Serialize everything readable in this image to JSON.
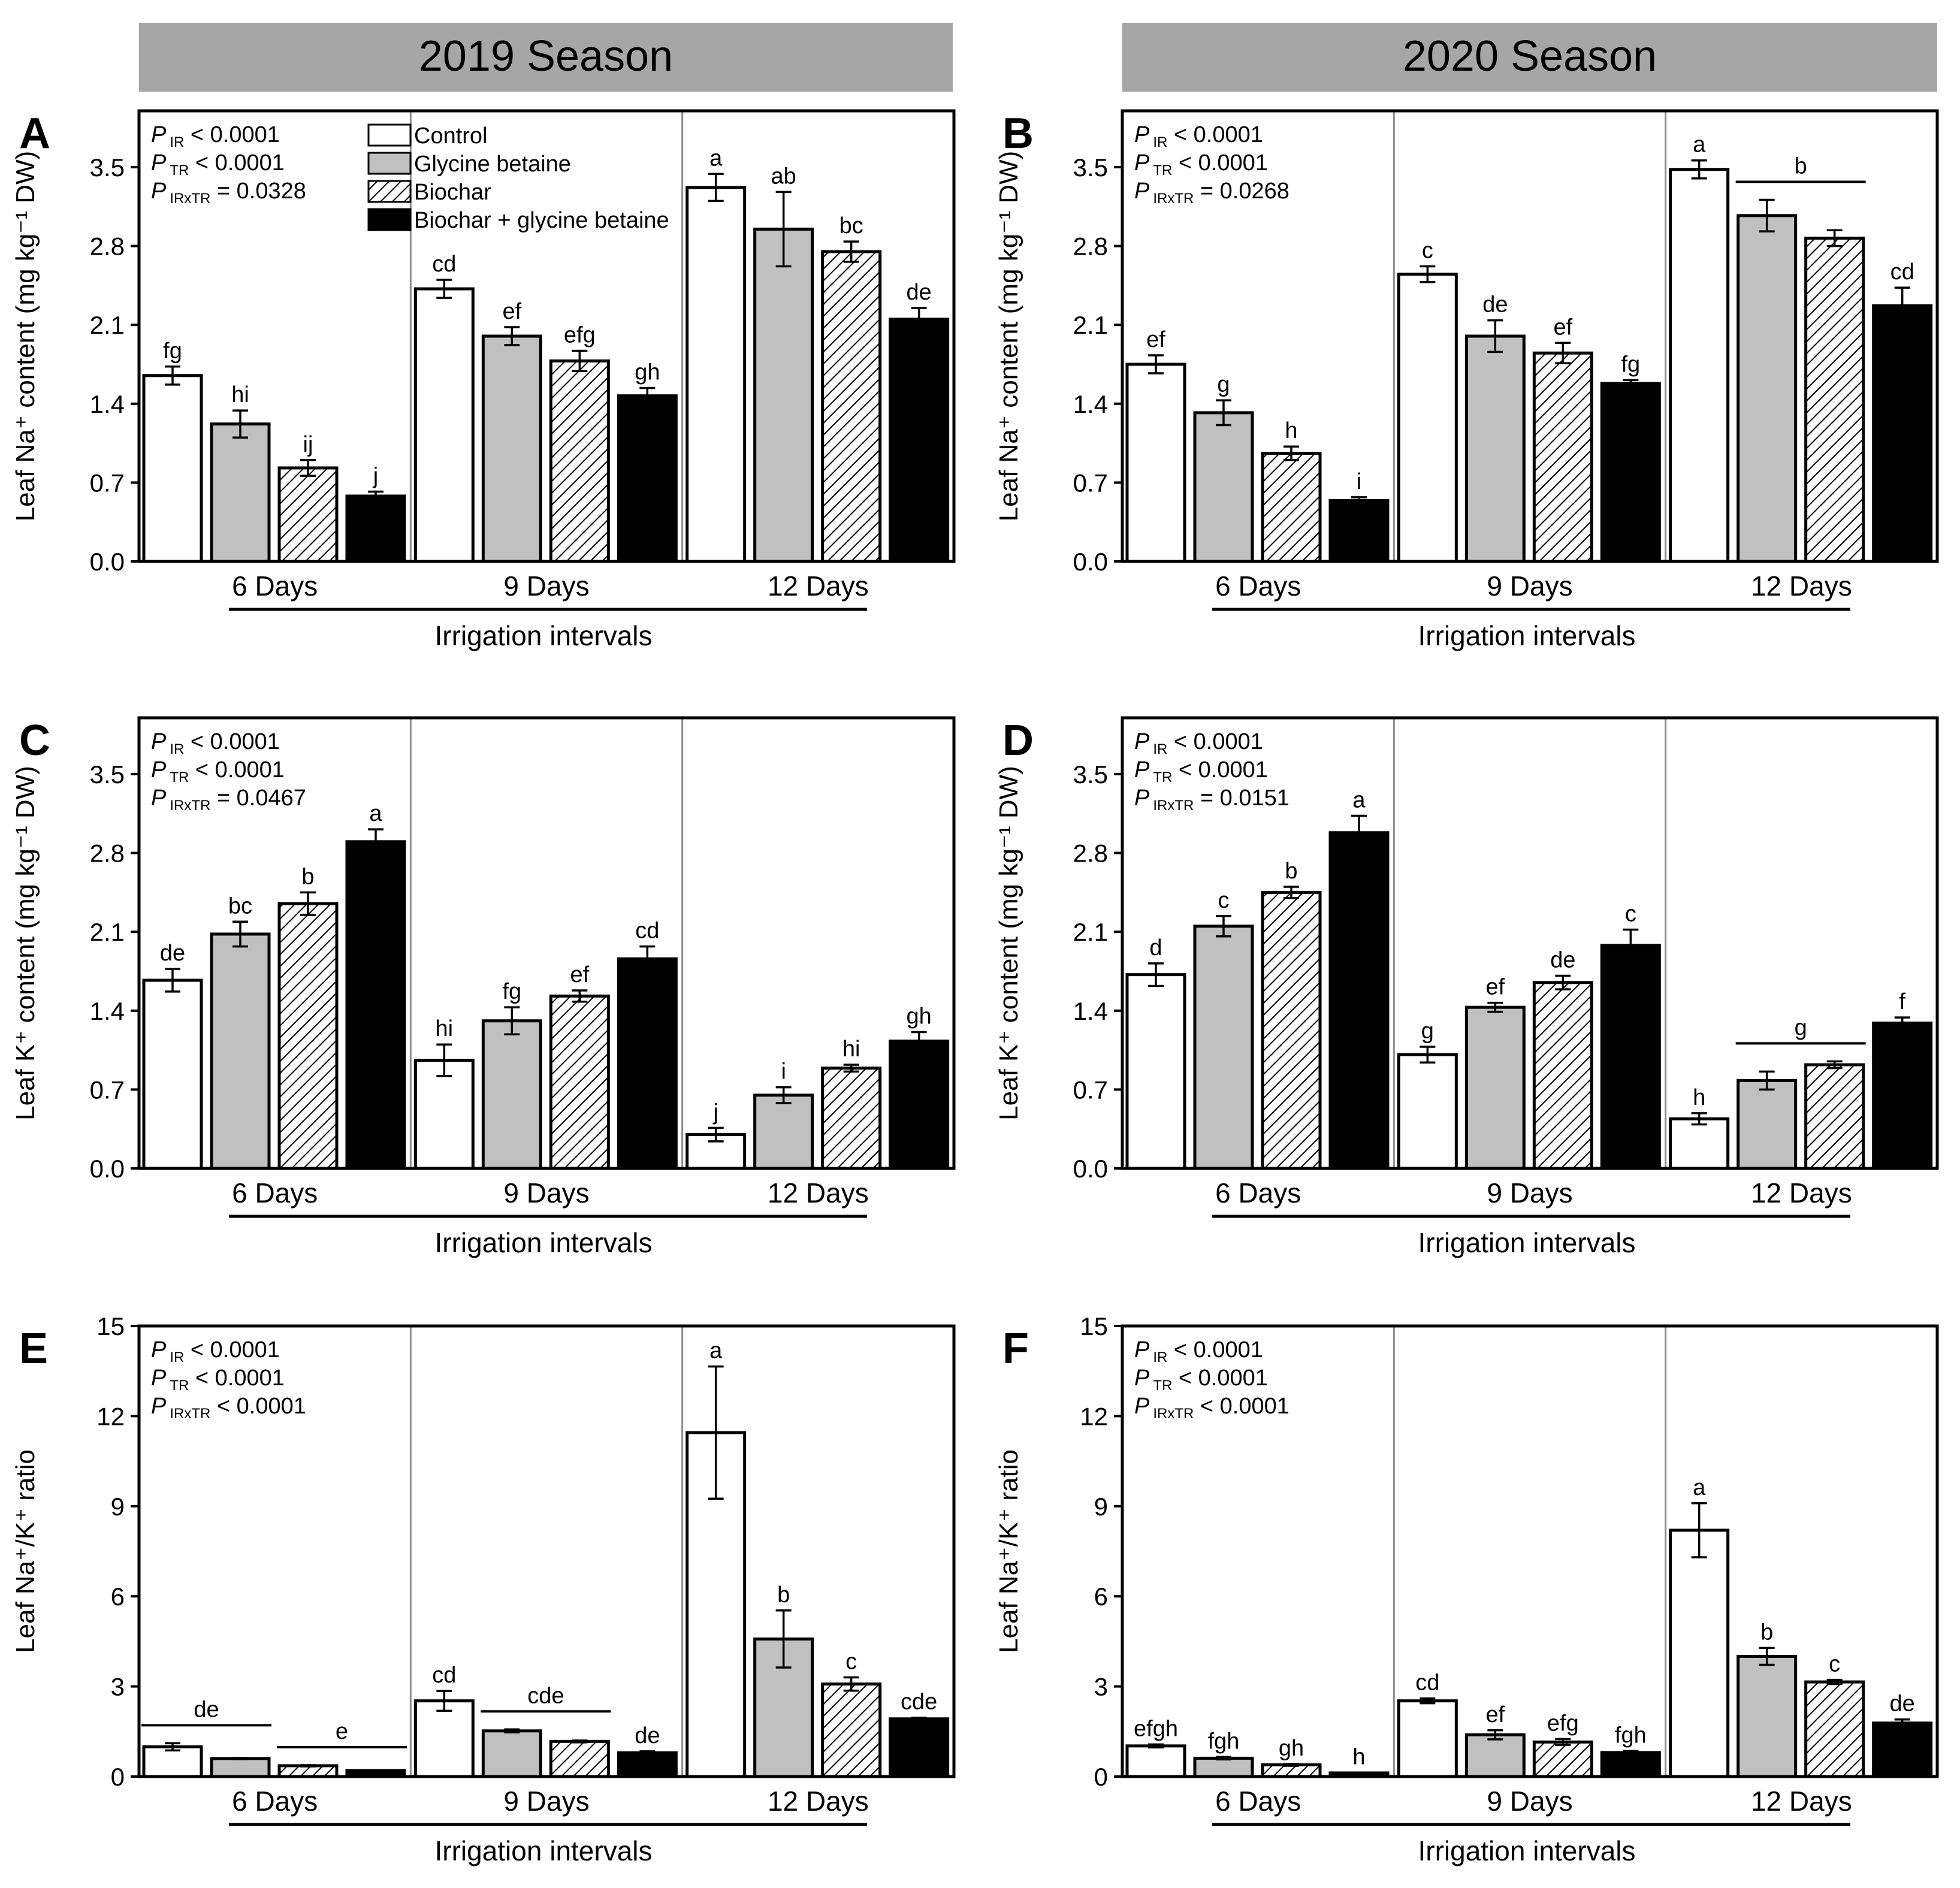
{
  "figure": {
    "season_headers": [
      "2019 Season",
      "2020 Season"
    ],
    "legend": [
      {
        "name": "Control",
        "fill": "#ffffff",
        "pattern": "none"
      },
      {
        "name": "Glycine betaine",
        "fill": "#c0c0c0",
        "pattern": "none"
      },
      {
        "name": "Biochar",
        "fill": "#ffffff",
        "pattern": "hatch"
      },
      {
        "name": "Biochar + glycine betaine",
        "fill": "#000000",
        "pattern": "none"
      }
    ],
    "interval_labels": [
      "6 Days",
      "9 Days",
      "12 Days"
    ],
    "xlabel": "Irrigation intervals"
  },
  "chart_data": [
    {
      "panel": "A",
      "type": "bar",
      "season": "2019 Season",
      "ylabel": "Leaf Na⁺ content (mg kg⁻¹ DW)",
      "ylim": [
        0,
        4
      ],
      "yticks": [
        "0.0",
        "0.7",
        "1.4",
        "2.1",
        "2.8",
        "3.5"
      ],
      "ytick_values": [
        0,
        0.7,
        1.4,
        2.1,
        2.8,
        3.5
      ],
      "stats": [
        {
          "sub": "IR",
          "rest": " < 0.0001"
        },
        {
          "sub": "TR",
          "rest": " < 0.0001"
        },
        {
          "sub": "IRxTR",
          "rest": " = 0.0328"
        }
      ],
      "categories": [
        "6 Days",
        "9 Days",
        "12 Days"
      ],
      "series": [
        {
          "name": "Control",
          "values": [
            1.65,
            2.42,
            3.32
          ],
          "errors": [
            0.08,
            0.08,
            0.12
          ],
          "letters": [
            "fg",
            "cd",
            "a"
          ]
        },
        {
          "name": "Glycine betaine",
          "values": [
            1.22,
            2.0,
            2.95
          ],
          "errors": [
            0.12,
            0.08,
            0.33
          ],
          "letters": [
            "hi",
            "ef",
            "ab"
          ]
        },
        {
          "name": "Biochar",
          "values": [
            0.83,
            1.78,
            2.75
          ],
          "errors": [
            0.07,
            0.09,
            0.09
          ],
          "letters": [
            "ij",
            "efg",
            "bc"
          ]
        },
        {
          "name": "Biochar + glycine betaine",
          "values": [
            0.58,
            1.47,
            2.15
          ],
          "errors": [
            0.04,
            0.07,
            0.1
          ],
          "letters": [
            "j",
            "gh",
            "de"
          ]
        }
      ],
      "group_lines": []
    },
    {
      "panel": "B",
      "type": "bar",
      "season": "2020 Season",
      "ylabel": "Leaf Na⁺ content (mg kg⁻¹ DW)",
      "ylim": [
        0,
        4
      ],
      "yticks": [
        "0.0",
        "0.7",
        "1.4",
        "2.1",
        "2.8",
        "3.5"
      ],
      "ytick_values": [
        0,
        0.7,
        1.4,
        2.1,
        2.8,
        3.5
      ],
      "stats": [
        {
          "sub": "IR",
          "rest": " < 0.0001"
        },
        {
          "sub": "TR",
          "rest": " < 0.0001"
        },
        {
          "sub": "IRxTR",
          "rest": " = 0.0268"
        }
      ],
      "categories": [
        "6 Days",
        "9 Days",
        "12 Days"
      ],
      "series": [
        {
          "name": "Control",
          "values": [
            1.75,
            2.55,
            3.48
          ],
          "errors": [
            0.08,
            0.07,
            0.08
          ],
          "letters": [
            "ef",
            "c",
            "a"
          ]
        },
        {
          "name": "Glycine betaine",
          "values": [
            1.32,
            2.0,
            3.07
          ],
          "errors": [
            0.11,
            0.14,
            0.14
          ],
          "letters": [
            "g",
            "de",
            ""
          ]
        },
        {
          "name": "Biochar",
          "values": [
            0.96,
            1.85,
            2.87
          ],
          "errors": [
            0.06,
            0.09,
            0.07
          ],
          "letters": [
            "h",
            "ef",
            ""
          ]
        },
        {
          "name": "Biochar + glycine betaine",
          "values": [
            0.54,
            1.58,
            2.27
          ],
          "errors": [
            0.03,
            0.03,
            0.16
          ],
          "letters": [
            "i",
            "fg",
            "cd"
          ]
        }
      ],
      "group_lines": [
        {
          "group": 2,
          "from": 1,
          "to": 2,
          "label": "b"
        }
      ]
    },
    {
      "panel": "C",
      "type": "bar",
      "season": "2019 Season",
      "ylabel": "Leaf K⁺ content (mg kg⁻¹ DW)",
      "ylim": [
        0,
        4
      ],
      "yticks": [
        "0.0",
        "0.7",
        "1.4",
        "2.1",
        "2.8",
        "3.5"
      ],
      "ytick_values": [
        0,
        0.7,
        1.4,
        2.1,
        2.8,
        3.5
      ],
      "stats": [
        {
          "sub": "IR",
          "rest": " < 0.0001"
        },
        {
          "sub": "TR",
          "rest": " < 0.0001"
        },
        {
          "sub": "IRxTR",
          "rest": " = 0.0467"
        }
      ],
      "categories": [
        "6 Days",
        "9 Days",
        "12 Days"
      ],
      "series": [
        {
          "name": "Control",
          "values": [
            1.67,
            0.96,
            0.3
          ],
          "errors": [
            0.1,
            0.14,
            0.06
          ],
          "letters": [
            "de",
            "hi",
            "j"
          ]
        },
        {
          "name": "Glycine betaine",
          "values": [
            2.08,
            1.31,
            0.65
          ],
          "errors": [
            0.11,
            0.12,
            0.07
          ],
          "letters": [
            "bc",
            "fg",
            "i"
          ]
        },
        {
          "name": "Biochar",
          "values": [
            2.35,
            1.53,
            0.89
          ],
          "errors": [
            0.1,
            0.05,
            0.03
          ],
          "letters": [
            "b",
            "ef",
            "hi"
          ]
        },
        {
          "name": "Biochar + glycine betaine",
          "values": [
            2.9,
            1.86,
            1.13
          ],
          "errors": [
            0.11,
            0.11,
            0.08
          ],
          "letters": [
            "a",
            "cd",
            "gh"
          ]
        }
      ],
      "group_lines": []
    },
    {
      "panel": "D",
      "type": "bar",
      "season": "2020 Season",
      "ylabel": "Leaf K⁺ content (mg kg⁻¹ DW)",
      "ylim": [
        0,
        4
      ],
      "yticks": [
        "0.0",
        "0.7",
        "1.4",
        "2.1",
        "2.8",
        "3.5"
      ],
      "ytick_values": [
        0,
        0.7,
        1.4,
        2.1,
        2.8,
        3.5
      ],
      "stats": [
        {
          "sub": "IR",
          "rest": " < 0.0001"
        },
        {
          "sub": "TR",
          "rest": " < 0.0001"
        },
        {
          "sub": "IRxTR",
          "rest": " = 0.0151"
        }
      ],
      "categories": [
        "6 Days",
        "9 Days",
        "12 Days"
      ],
      "series": [
        {
          "name": "Control",
          "values": [
            1.72,
            1.01,
            0.44
          ],
          "errors": [
            0.1,
            0.07,
            0.05
          ],
          "letters": [
            "d",
            "g",
            "h"
          ]
        },
        {
          "name": "Glycine betaine",
          "values": [
            2.15,
            1.43,
            0.78
          ],
          "errors": [
            0.09,
            0.04,
            0.08
          ],
          "letters": [
            "c",
            "ef",
            ""
          ]
        },
        {
          "name": "Biochar",
          "values": [
            2.45,
            1.65,
            0.92
          ],
          "errors": [
            0.05,
            0.06,
            0.03
          ],
          "letters": [
            "b",
            "de",
            ""
          ]
        },
        {
          "name": "Biochar + glycine betaine",
          "values": [
            2.98,
            1.98,
            1.29
          ],
          "errors": [
            0.15,
            0.14,
            0.05
          ],
          "letters": [
            "a",
            "c",
            "f"
          ]
        }
      ],
      "group_lines": [
        {
          "group": 2,
          "from": 1,
          "to": 2,
          "label": "g"
        }
      ]
    },
    {
      "panel": "E",
      "type": "bar",
      "season": "2019 Season",
      "ylabel": "Leaf Na⁺/K⁺ ratio",
      "ylim": [
        0,
        15
      ],
      "yticks": [
        "0",
        "3",
        "6",
        "9",
        "12",
        "15"
      ],
      "ytick_values": [
        0,
        3,
        6,
        9,
        12,
        15
      ],
      "stats": [
        {
          "sub": "IR",
          "rest": " < 0.0001"
        },
        {
          "sub": "TR",
          "rest": " < 0.0001"
        },
        {
          "sub": "IRxTR",
          "rest": " < 0.0001"
        }
      ],
      "categories": [
        "6 Days",
        "9 Days",
        "12 Days"
      ],
      "series": [
        {
          "name": "Control",
          "values": [
            0.99,
            2.52,
            11.45
          ],
          "errors": [
            0.12,
            0.33,
            2.2
          ],
          "letters": [
            "",
            "cd",
            "a"
          ]
        },
        {
          "name": "Glycine betaine",
          "values": [
            0.6,
            1.52,
            4.58
          ],
          "errors": [
            0.02,
            0.05,
            0.95
          ],
          "letters": [
            "",
            "",
            "b"
          ]
        },
        {
          "name": "Biochar",
          "values": [
            0.36,
            1.17,
            3.08
          ],
          "errors": [
            0.02,
            0.03,
            0.22
          ],
          "letters": [
            "",
            "",
            "c"
          ]
        },
        {
          "name": "Biochar + glycine betaine",
          "values": [
            0.2,
            0.79,
            1.92
          ],
          "errors": [
            0.01,
            0.05,
            0.04
          ],
          "letters": [
            "",
            "de",
            "cde"
          ]
        }
      ],
      "group_lines": [
        {
          "group": 0,
          "from": 0,
          "to": 1,
          "label": "de"
        },
        {
          "group": 0,
          "from": 2,
          "to": 3,
          "label": "e"
        },
        {
          "group": 1,
          "from": 1,
          "to": 2,
          "label": "cde"
        }
      ]
    },
    {
      "panel": "F",
      "type": "bar",
      "season": "2020 Season",
      "ylabel": "Leaf Na⁺/K⁺ ratio",
      "ylim": [
        0,
        15
      ],
      "yticks": [
        "0",
        "3",
        "6",
        "9",
        "12",
        "15"
      ],
      "ytick_values": [
        0,
        3,
        6,
        9,
        12,
        15
      ],
      "stats": [
        {
          "sub": "IR",
          "rest": " < 0.0001"
        },
        {
          "sub": "TR",
          "rest": " < 0.0001"
        },
        {
          "sub": "IRxTR",
          "rest": " < 0.0001"
        }
      ],
      "categories": [
        "6 Days",
        "9 Days",
        "12 Days"
      ],
      "series": [
        {
          "name": "Control",
          "values": [
            1.02,
            2.52,
            8.2
          ],
          "errors": [
            0.05,
            0.08,
            0.9
          ],
          "letters": [
            "efgh",
            "cd",
            "a"
          ]
        },
        {
          "name": "Glycine betaine",
          "values": [
            0.61,
            1.39,
            4.0
          ],
          "errors": [
            0.04,
            0.15,
            0.28
          ],
          "letters": [
            "fgh",
            "ef",
            "b"
          ]
        },
        {
          "name": "Biochar",
          "values": [
            0.39,
            1.15,
            3.15
          ],
          "errors": [
            0.03,
            0.1,
            0.07
          ],
          "letters": [
            "gh",
            "efg",
            "c"
          ]
        },
        {
          "name": "Biochar + glycine betaine",
          "values": [
            0.12,
            0.8,
            1.78
          ],
          "errors": [
            0.01,
            0.05,
            0.12
          ],
          "letters": [
            "h",
            "fgh",
            "de"
          ]
        }
      ],
      "group_lines": []
    }
  ]
}
